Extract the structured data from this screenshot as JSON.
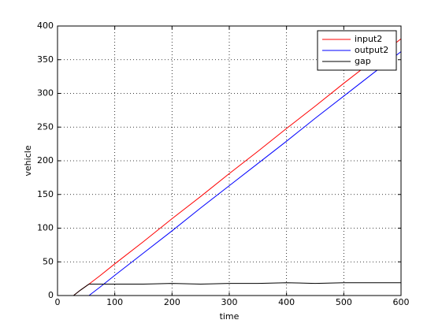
{
  "chart_data": {
    "type": "line",
    "xlabel": "time",
    "ylabel": "vehicle",
    "x": [
      28,
      40,
      55,
      75,
      100,
      150,
      200,
      250,
      300,
      350,
      400,
      450,
      500,
      550,
      600
    ],
    "series": [
      {
        "name": "input2",
        "color": "#ff0000",
        "values": [
          0,
          8,
          17,
          30,
          47,
          80,
          114,
          147,
          181,
          214,
          248,
          281,
          315,
          348,
          381
        ]
      },
      {
        "name": "output2",
        "color": "#0000ff",
        "values": [
          null,
          null,
          0,
          13,
          30,
          63,
          96,
          130,
          163,
          196,
          229,
          263,
          296,
          329,
          362
        ]
      },
      {
        "name": "gap",
        "color": "#000000",
        "values": [
          0,
          8,
          17,
          17,
          17,
          17,
          18,
          17,
          18,
          18,
          19,
          18,
          19,
          19,
          19
        ]
      }
    ],
    "xlim": [
      0,
      600
    ],
    "xticks": [
      0,
      100,
      200,
      300,
      400,
      500,
      600
    ],
    "ylim": [
      0,
      400
    ],
    "yticks": [
      0,
      50,
      100,
      150,
      200,
      250,
      300,
      350,
      400
    ],
    "grid": true,
    "legend": "northeast"
  }
}
